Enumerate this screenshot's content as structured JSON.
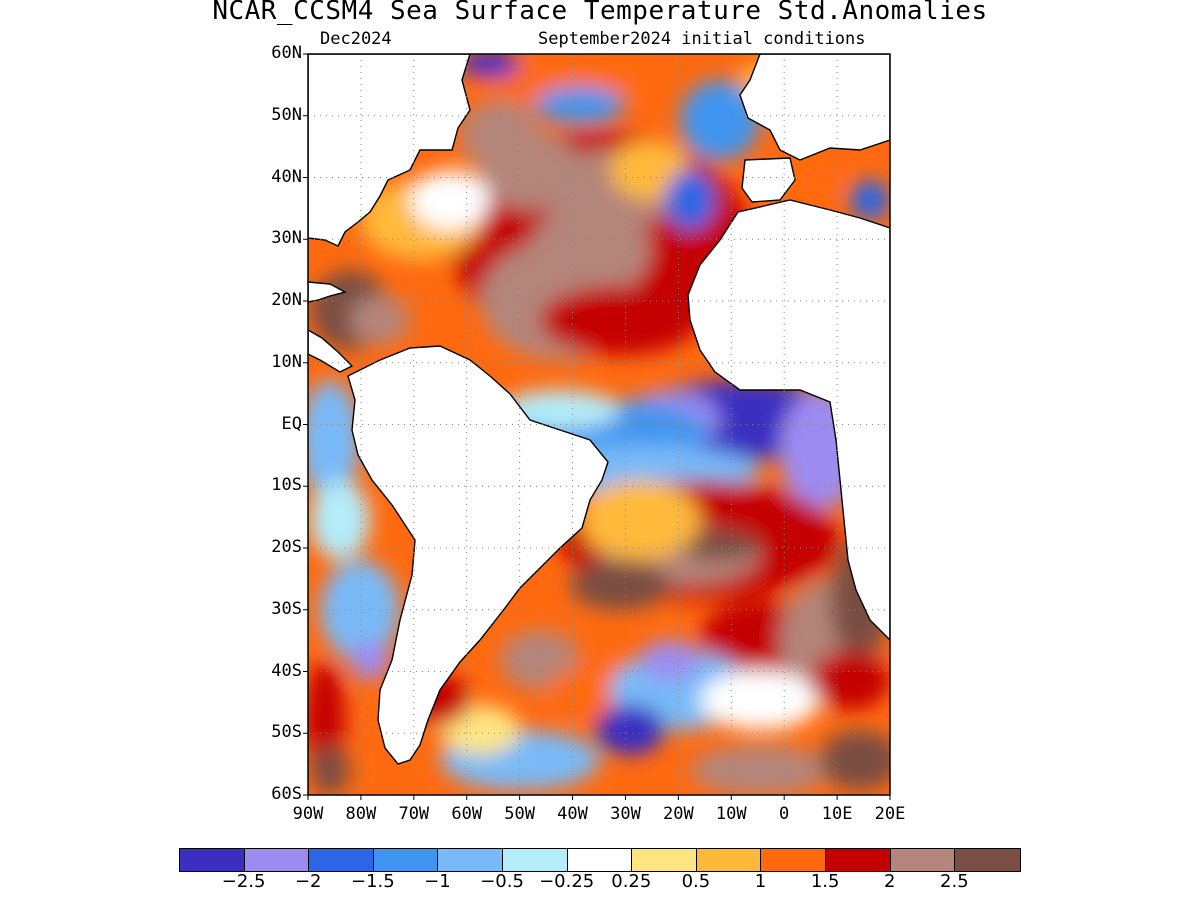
{
  "header": {
    "title": "NCAR_CCSM4 Sea Surface Temperature Std.Anomalies",
    "valid_month": "Dec2024",
    "init_text": "September2024 initial conditions"
  },
  "axes": {
    "lat_labels": [
      "60N",
      "50N",
      "40N",
      "30N",
      "20N",
      "10N",
      "EQ",
      "10S",
      "20S",
      "30S",
      "40S",
      "50S",
      "60S"
    ],
    "lon_labels": [
      "90W",
      "80W",
      "70W",
      "60W",
      "50W",
      "40W",
      "30W",
      "20W",
      "10W",
      "0",
      "10E",
      "20E"
    ],
    "lat_range": [
      -60,
      60
    ],
    "lon_range": [
      -90,
      20
    ],
    "grid": true
  },
  "colorbar": {
    "colors": [
      "#3a2fc0",
      "#9c8cf2",
      "#2b66e6",
      "#3f95f0",
      "#78baf8",
      "#b3ecfa",
      "#ffffff",
      "#ffe581",
      "#ffb93a",
      "#ff6a10",
      "#c40000",
      "#b4857a",
      "#7a4e43"
    ],
    "labels": [
      "−2.5",
      "−2",
      "−1.5",
      "−1",
      "−0.5",
      "−0.25",
      "0.25",
      "0.5",
      "1",
      "1.5",
      "2",
      "2.5"
    ]
  },
  "features": [
    {
      "name": "eastern-equatorial-atlantic-cold-anomaly",
      "value": -2.5
    },
    {
      "name": "north-atlantic-warm-anomaly",
      "value": 2.5
    },
    {
      "name": "south-atlantic-subtropical-warm-anomaly",
      "value": 2.5
    },
    {
      "name": "western-north-atlantic-warm-anomaly",
      "value": 1.5
    },
    {
      "name": "south-american-pacific-coast-cool",
      "value": -0.5
    },
    {
      "name": "southern-ocean-cool-patches",
      "value": -1.5
    }
  ]
}
